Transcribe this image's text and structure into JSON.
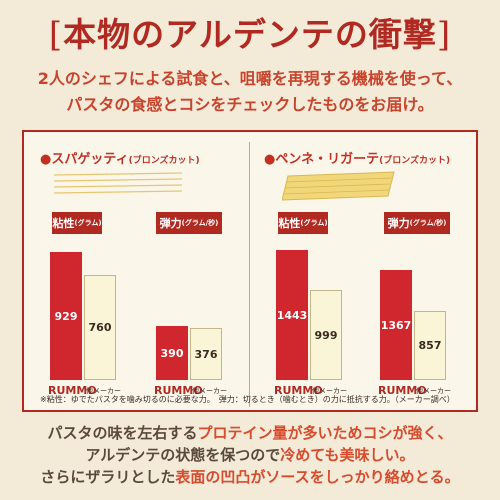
{
  "header": {
    "title": "本物のアルデンテの衝撃",
    "subtitle_line1": "2人のシェフによる試食と、咀嚼を再現する機械を使って、",
    "subtitle_line2": "パスタの食感とコシをチェックしたものをお届け。"
  },
  "chart_data": [
    {
      "type": "bar",
      "group": "スパゲッティ",
      "group_note": "(ブロンズカット)",
      "panels": [
        {
          "label": "粘性",
          "unit": "(グラム)",
          "categories": [
            "RUMMO",
            "他メーカー"
          ],
          "values": [
            929,
            760
          ]
        },
        {
          "label": "弾力",
          "unit": "(グラム/秒)",
          "categories": [
            "RUMMO",
            "他メーカー"
          ],
          "values": [
            390,
            376
          ]
        }
      ]
    },
    {
      "type": "bar",
      "group": "ペンネ・リガーテ",
      "group_note": "(ブロンズカット)",
      "panels": [
        {
          "label": "粘性",
          "unit": "(グラム)",
          "categories": [
            "RUMMO",
            "他メーカー"
          ],
          "values": [
            1443,
            999
          ]
        },
        {
          "label": "弾力",
          "unit": "(グラム/秒)",
          "categories": [
            "RUMMO",
            "他メーカー"
          ],
          "values": [
            1367,
            857
          ]
        }
      ]
    }
  ],
  "footnote": "※粘性：ゆでたパスタを噛み切るのに必要な力。　弾力：切るとき（噛むとき）の力に抵抗する力。（メーカー調べ）",
  "bottom": {
    "l1a": "パスタの味を左右する",
    "l1b": "プロテイン量が多いためコシが強く、",
    "l2a": "アルデンテの状態を保つので",
    "l2b": "冷めても美味しい。",
    "l3a": "さらにザラリとした",
    "l3b": "表面の凹凸がソースをしっかり絡めとる。"
  },
  "colors": {
    "accent": "#b12a22",
    "rummo_bar": "#d0262e",
    "other_bar": "#fbf5d8",
    "background": "#f3ead7"
  }
}
